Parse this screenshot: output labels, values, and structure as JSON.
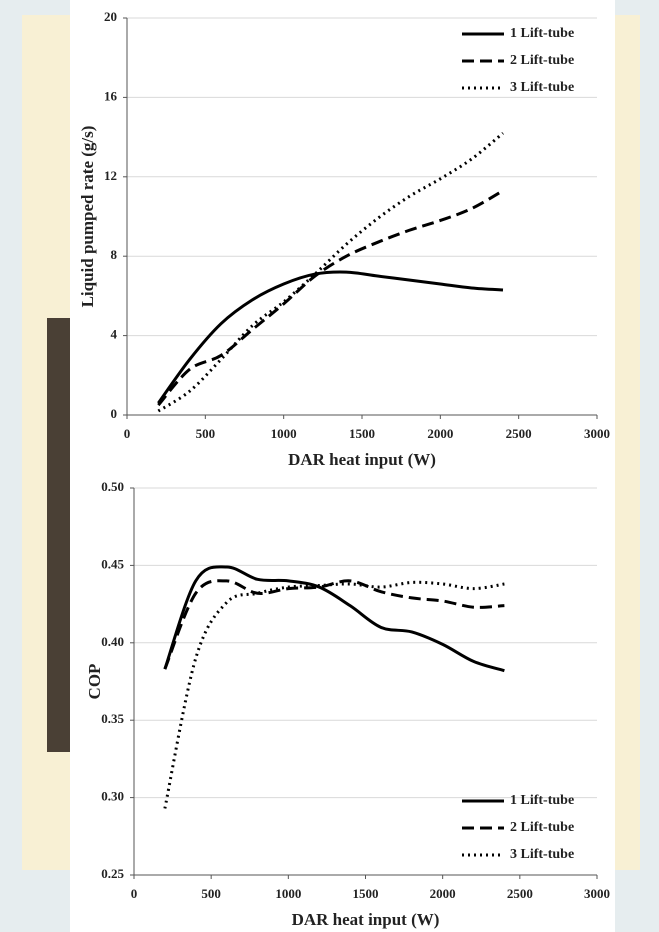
{
  "chart_data": [
    {
      "type": "line",
      "x_label": "DAR heat input (W)",
      "y_label": "Liquid pumped rate (g/s)",
      "x": [
        200,
        400,
        600,
        800,
        1000,
        1200,
        1400,
        1600,
        1800,
        2000,
        2200,
        2400
      ],
      "series": [
        {
          "name": "1 Lift-tube",
          "color": "#000000",
          "dash": "solid",
          "values": [
            0.6,
            2.8,
            4.6,
            5.8,
            6.6,
            7.1,
            7.2,
            7.0,
            6.8,
            6.6,
            6.4,
            6.3
          ]
        },
        {
          "name": "2 Lift-tube",
          "color": "#000000",
          "dash": "dashed",
          "values": [
            0.5,
            2.3,
            3.0,
            4.3,
            5.6,
            7.0,
            8.0,
            8.7,
            9.3,
            9.8,
            10.4,
            11.3
          ]
        },
        {
          "name": "3 Lift-tube",
          "color": "#000000",
          "dash": "dotted",
          "values": [
            0.2,
            1.2,
            2.8,
            4.5,
            5.7,
            7.1,
            8.6,
            9.9,
            11.0,
            11.9,
            12.9,
            14.2
          ]
        }
      ],
      "xlim": [
        0,
        3000
      ],
      "xticks": [
        0,
        500,
        1000,
        1500,
        2000,
        2500,
        3000
      ],
      "ylim": [
        0,
        20
      ],
      "yticks": [
        0,
        4,
        8,
        12,
        16,
        20
      ],
      "grid": true,
      "legend": "upper right"
    },
    {
      "type": "line",
      "x_label": "DAR heat input (W)",
      "y_label": "COP",
      "x": [
        200,
        400,
        600,
        800,
        1000,
        1200,
        1400,
        1600,
        1800,
        2000,
        2200,
        2400
      ],
      "series": [
        {
          "name": "1 Lift-tube",
          "color": "#000000",
          "dash": "solid",
          "values": [
            0.383,
            0.44,
            0.449,
            0.441,
            0.44,
            0.436,
            0.424,
            0.41,
            0.407,
            0.399,
            0.388,
            0.382
          ]
        },
        {
          "name": "2 Lift-tube",
          "color": "#000000",
          "dash": "dashed",
          "values": [
            0.383,
            0.432,
            0.44,
            0.432,
            0.435,
            0.436,
            0.44,
            0.433,
            0.429,
            0.427,
            0.423,
            0.424
          ]
        },
        {
          "name": "3 Lift-tube",
          "color": "#000000",
          "dash": "dotted",
          "values": [
            0.293,
            0.39,
            0.426,
            0.432,
            0.436,
            0.437,
            0.438,
            0.436,
            0.439,
            0.438,
            0.435,
            0.438
          ]
        }
      ],
      "xlim": [
        0,
        3000
      ],
      "xticks": [
        0,
        500,
        1000,
        1500,
        2000,
        2500,
        3000
      ],
      "ylim": [
        0.25,
        0.5
      ],
      "yticks": [
        0.25,
        {
          "value": 0.3,
          "label": "0.30"
        },
        0.35,
        {
          "value": 0.4,
          "label": "0.40"
        },
        0.45,
        {
          "value": 0.5,
          "label": "0.50"
        }
      ],
      "grid": true,
      "legend": "lower right"
    }
  ]
}
